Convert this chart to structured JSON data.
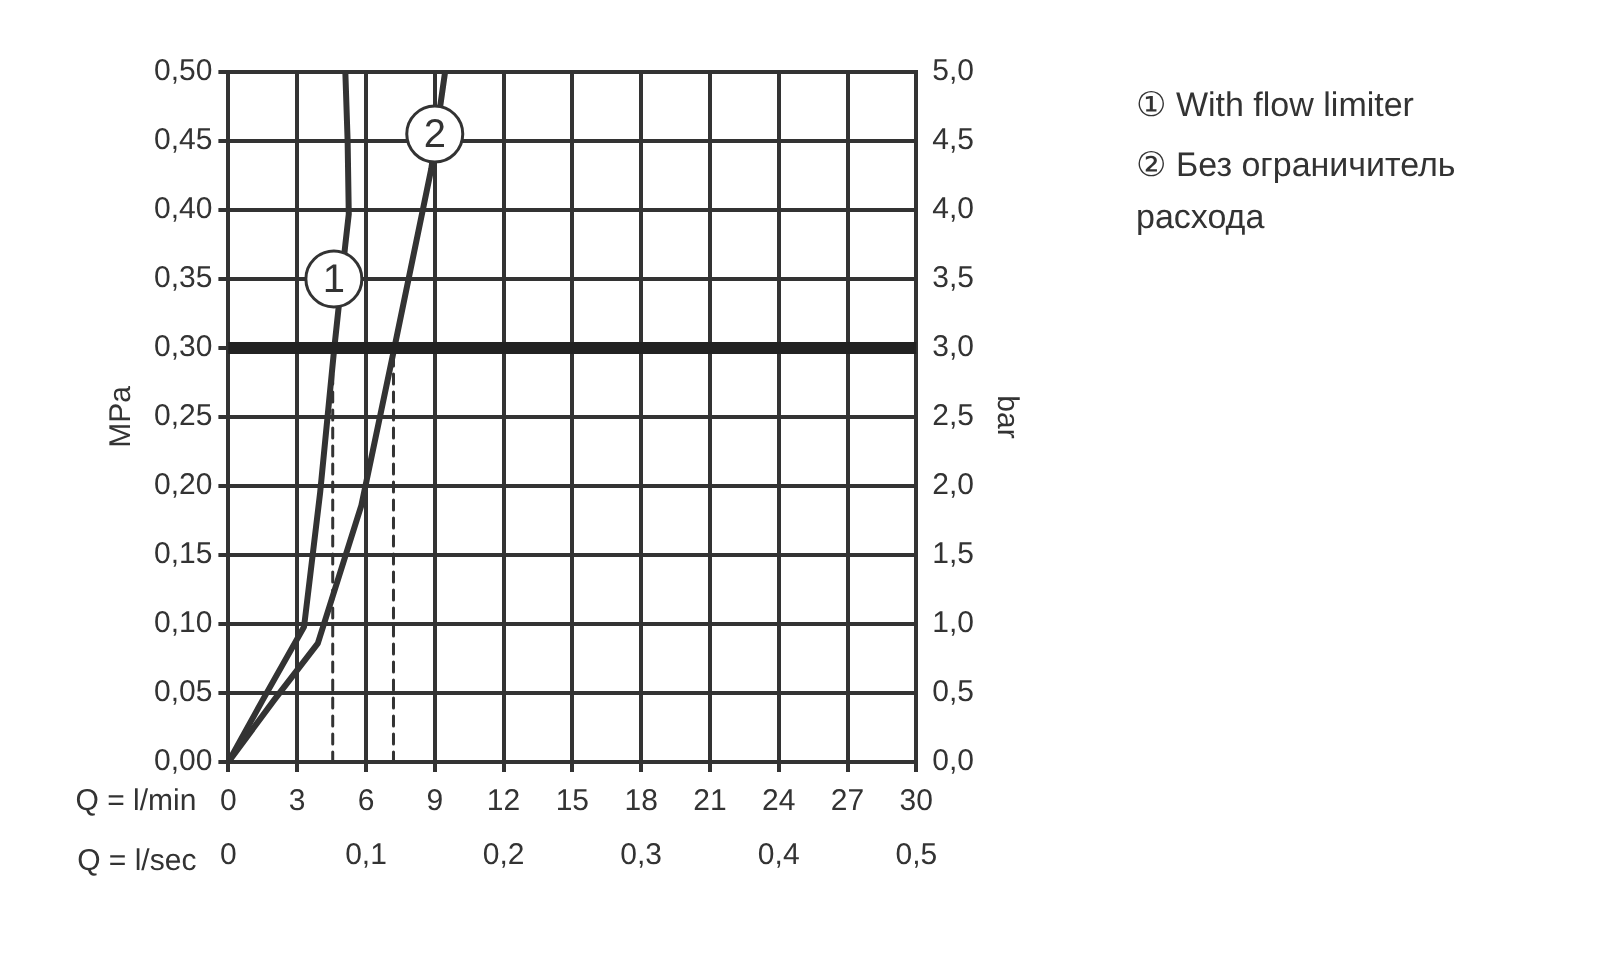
{
  "chart_data": {
    "type": "line",
    "xlabel": "Q = l/min",
    "x2label": "Q = l/sec",
    "ylabel": "MPa",
    "y2label": "bar",
    "xlim": [
      0,
      30
    ],
    "xticks": [
      0,
      3,
      6,
      9,
      12,
      15,
      18,
      21,
      24,
      27,
      30
    ],
    "x2lim": [
      0,
      0.5
    ],
    "x2ticks": [
      0,
      {
        "value": 0.1,
        "label": "0,1"
      },
      {
        "value": 0.2,
        "label": "0,2"
      },
      {
        "value": 0.3,
        "label": "0,3"
      },
      {
        "value": 0.4,
        "label": "0,4"
      },
      {
        "value": 0.5,
        "label": "0,5"
      }
    ],
    "ylim": [
      0,
      0.5
    ],
    "yticks": [
      {
        "value": 0,
        "label": "0,00"
      },
      {
        "value": 0.05,
        "label": "0,05"
      },
      {
        "value": 0.1,
        "label": "0,10"
      },
      {
        "value": 0.15,
        "label": "0,15"
      },
      {
        "value": 0.2,
        "label": "0,20"
      },
      {
        "value": 0.25,
        "label": "0,25"
      },
      {
        "value": 0.3,
        "label": "0,30"
      },
      {
        "value": 0.35,
        "label": "0,35"
      },
      {
        "value": 0.4,
        "label": "0,40"
      },
      {
        "value": 0.45,
        "label": "0,45"
      },
      {
        "value": 0.5,
        "label": "0,50"
      }
    ],
    "y2lim": [
      0,
      5
    ],
    "y2ticks": [
      {
        "value": 0,
        "label": "0,0"
      },
      {
        "value": 0.5,
        "label": "0,5"
      },
      {
        "value": 1,
        "label": "1,0"
      },
      {
        "value": 1.5,
        "label": "1,5"
      },
      {
        "value": 2,
        "label": "2,0"
      },
      {
        "value": 2.5,
        "label": "2,5"
      },
      {
        "value": 3,
        "label": "3,0"
      },
      {
        "value": 3.5,
        "label": "3,5"
      },
      {
        "value": 4,
        "label": "4,0"
      },
      {
        "value": 4.5,
        "label": "4,5"
      },
      {
        "value": 5,
        "label": "5,0"
      }
    ],
    "grid": true,
    "legend": "right",
    "marker": "none",
    "series": [
      {
        "name": "① With flow limiter",
        "color": "#333333",
        "x": [
          0,
          1.5,
          3.3,
          4.0,
          4.6,
          5.1,
          5.25,
          5.2,
          5.1
        ],
        "values": [
          0,
          0.045,
          0.098,
          0.195,
          0.297,
          0.375,
          0.397,
          0.45,
          0.5
        ]
      },
      {
        "name": "② Без ограничитель расхода",
        "color": "#333333",
        "x": [
          0,
          2,
          3.9,
          5.8,
          7.2,
          8.85,
          9.45
        ],
        "values": [
          0,
          0.045,
          0.086,
          0.186,
          0.297,
          0.43,
          0.5
        ]
      },
      {
        "color": "#333333",
        "line_style": "dashed",
        "x": [
          4.55,
          4.55
        ],
        "values": [
          0,
          0.3
        ]
      },
      {
        "color": "#333333",
        "line_style": "dashed",
        "x": [
          7.2,
          7.2
        ],
        "values": [
          0,
          0.3
        ]
      }
    ],
    "ref_lines": [
      {
        "axis": "y",
        "value": 0.3,
        "color": "#222222"
      }
    ],
    "annotations": [
      {
        "text": "1",
        "x": 4.6,
        "y": 0.35
      },
      {
        "text": "2",
        "x": 9.0,
        "y": 0.455
      }
    ]
  }
}
